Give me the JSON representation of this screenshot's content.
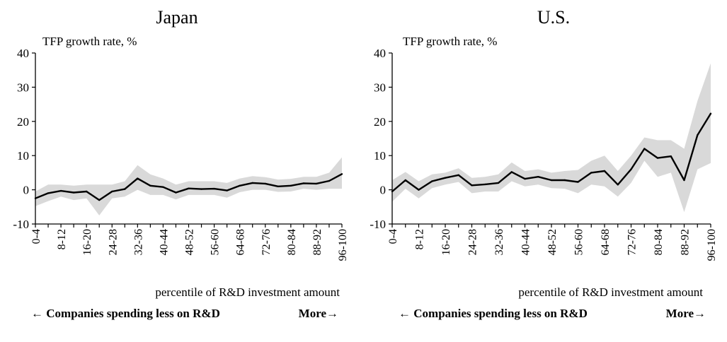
{
  "chart_data": [
    {
      "type": "line",
      "title": "Japan",
      "ylabel": "TFP growth rate, %",
      "xlabel": "percentile of R&D investment amount",
      "footer_left": "← Companies spending less on R&D",
      "footer_right": "More→",
      "ylim": [
        -10,
        40
      ],
      "yticks": [
        -10,
        0,
        10,
        20,
        30,
        40
      ],
      "grid": false,
      "categories": [
        "0-4",
        "4-8",
        "8-12",
        "12-16",
        "16-20",
        "20-24",
        "24-28",
        "28-32",
        "32-36",
        "36-40",
        "40-44",
        "44-48",
        "48-52",
        "52-56",
        "56-60",
        "60-64",
        "64-68",
        "68-72",
        "72-76",
        "76-80",
        "80-84",
        "84-88",
        "88-92",
        "92-96",
        "96-100"
      ],
      "tick_labels": [
        "0-4",
        "8-12",
        "16-20",
        "24-28",
        "32-36",
        "40-44",
        "48-52",
        "56-60",
        "64-68",
        "72-76",
        "80-84",
        "88-92",
        "96-100"
      ],
      "series": [
        {
          "values": [
            -2.5,
            -1.0,
            -0.3,
            -0.8,
            -0.5,
            -3.0,
            -0.5,
            0.2,
            3.3,
            1.2,
            0.8,
            -0.8,
            0.4,
            0.2,
            0.3,
            -0.2,
            1.2,
            2.0,
            1.8,
            1.0,
            1.2,
            1.9,
            1.8,
            2.6,
            4.6
          ]
        }
      ],
      "band": {
        "upper": [
          -0.5,
          1.5,
          1.5,
          1.2,
          1.5,
          1.5,
          1.5,
          2.5,
          7.2,
          4.5,
          3.3,
          1.5,
          2.5,
          2.5,
          2.5,
          2.0,
          3.3,
          4.0,
          3.7,
          3.0,
          3.2,
          3.8,
          3.8,
          5.0,
          9.5
        ],
        "lower": [
          -4.8,
          -3.3,
          -2.0,
          -3.0,
          -2.5,
          -7.5,
          -2.5,
          -2.0,
          0.0,
          -1.5,
          -1.5,
          -2.8,
          -1.5,
          -1.5,
          -1.5,
          -2.3,
          -0.7,
          0.0,
          0.0,
          -0.6,
          -0.5,
          0.3,
          0.0,
          0.3,
          0.3
        ]
      }
    },
    {
      "type": "line",
      "title": "U.S.",
      "ylabel": "TFP growth rate, %",
      "xlabel": "percentile of R&D investment amount",
      "footer_left": "← Companies spending less on R&D",
      "footer_right": "More→",
      "ylim": [
        -10,
        40
      ],
      "yticks": [
        -10,
        0,
        10,
        20,
        30,
        40
      ],
      "grid": false,
      "categories": [
        "0-4",
        "4-8",
        "8-12",
        "12-16",
        "16-20",
        "20-24",
        "24-28",
        "28-32",
        "32-36",
        "36-40",
        "40-44",
        "44-48",
        "48-52",
        "52-56",
        "56-60",
        "60-64",
        "64-68",
        "68-72",
        "72-76",
        "76-80",
        "80-84",
        "84-88",
        "88-92",
        "92-96",
        "96-100"
      ],
      "tick_labels": [
        "0-4",
        "8-12",
        "16-20",
        "24-28",
        "32-36",
        "40-44",
        "48-52",
        "56-60",
        "64-68",
        "72-76",
        "80-84",
        "88-92",
        "96-100"
      ],
      "series": [
        {
          "values": [
            -0.5,
            2.8,
            0.0,
            2.5,
            3.5,
            4.3,
            1.3,
            1.6,
            2.0,
            5.2,
            3.2,
            3.8,
            2.8,
            2.8,
            2.3,
            5.0,
            5.5,
            1.5,
            6.0,
            12.0,
            9.3,
            9.8,
            2.8,
            16.0,
            22.3
          ]
        }
      ],
      "band": {
        "upper": [
          2.8,
          5.2,
          2.5,
          4.5,
          5.0,
          6.3,
          3.5,
          3.8,
          4.5,
          8.0,
          5.5,
          6.0,
          5.0,
          5.5,
          5.8,
          8.5,
          10.0,
          5.5,
          10.0,
          15.3,
          14.5,
          14.5,
          12.0,
          26.0,
          37.0
        ],
        "lower": [
          -3.5,
          0.3,
          -2.5,
          0.5,
          1.5,
          2.3,
          -1.0,
          -0.5,
          -0.5,
          2.5,
          1.0,
          1.5,
          0.5,
          0.3,
          -1.0,
          1.5,
          1.0,
          -2.0,
          2.0,
          8.5,
          3.8,
          5.0,
          -6.5,
          6.0,
          7.8
        ]
      }
    }
  ]
}
